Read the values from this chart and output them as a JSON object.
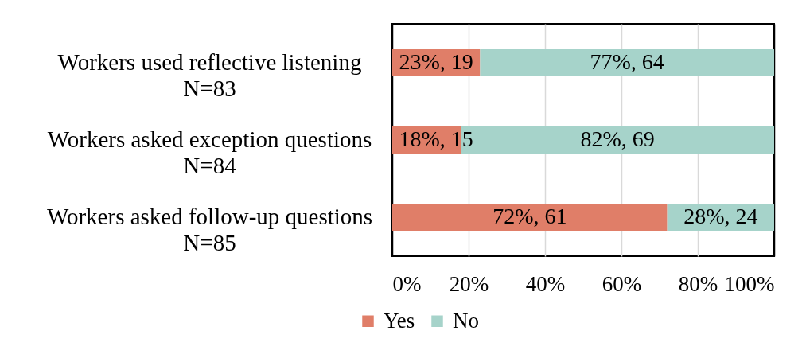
{
  "chart_data": {
    "type": "bar",
    "orientation": "horizontal",
    "stacked": true,
    "categories": [
      "Workers used reflective listening\nN=83",
      "Workers asked exception questions\nN=84",
      "Workers asked follow-up questions\nN=85"
    ],
    "series": [
      {
        "name": "Yes",
        "color": "#e07e68",
        "values": [
          23,
          18,
          72
        ],
        "value_labels": [
          "23%, 19",
          "18%, 15",
          "72%, 61"
        ]
      },
      {
        "name": "No",
        "color": "#a6d3ca",
        "values": [
          77,
          82,
          28
        ],
        "value_labels": [
          "77%, 64",
          "82%, 69",
          "28%, 24"
        ]
      }
    ],
    "xlim": [
      0,
      100
    ],
    "xticks": [
      {
        "value": 0,
        "label": "0%"
      },
      {
        "value": 20,
        "label": "20%"
      },
      {
        "value": 40,
        "label": "40%"
      },
      {
        "value": 60,
        "label": "60%"
      },
      {
        "value": 80,
        "label": "80%"
      },
      {
        "value": 100,
        "label": "100%"
      }
    ],
    "grid": "x",
    "legend": "bottom"
  }
}
